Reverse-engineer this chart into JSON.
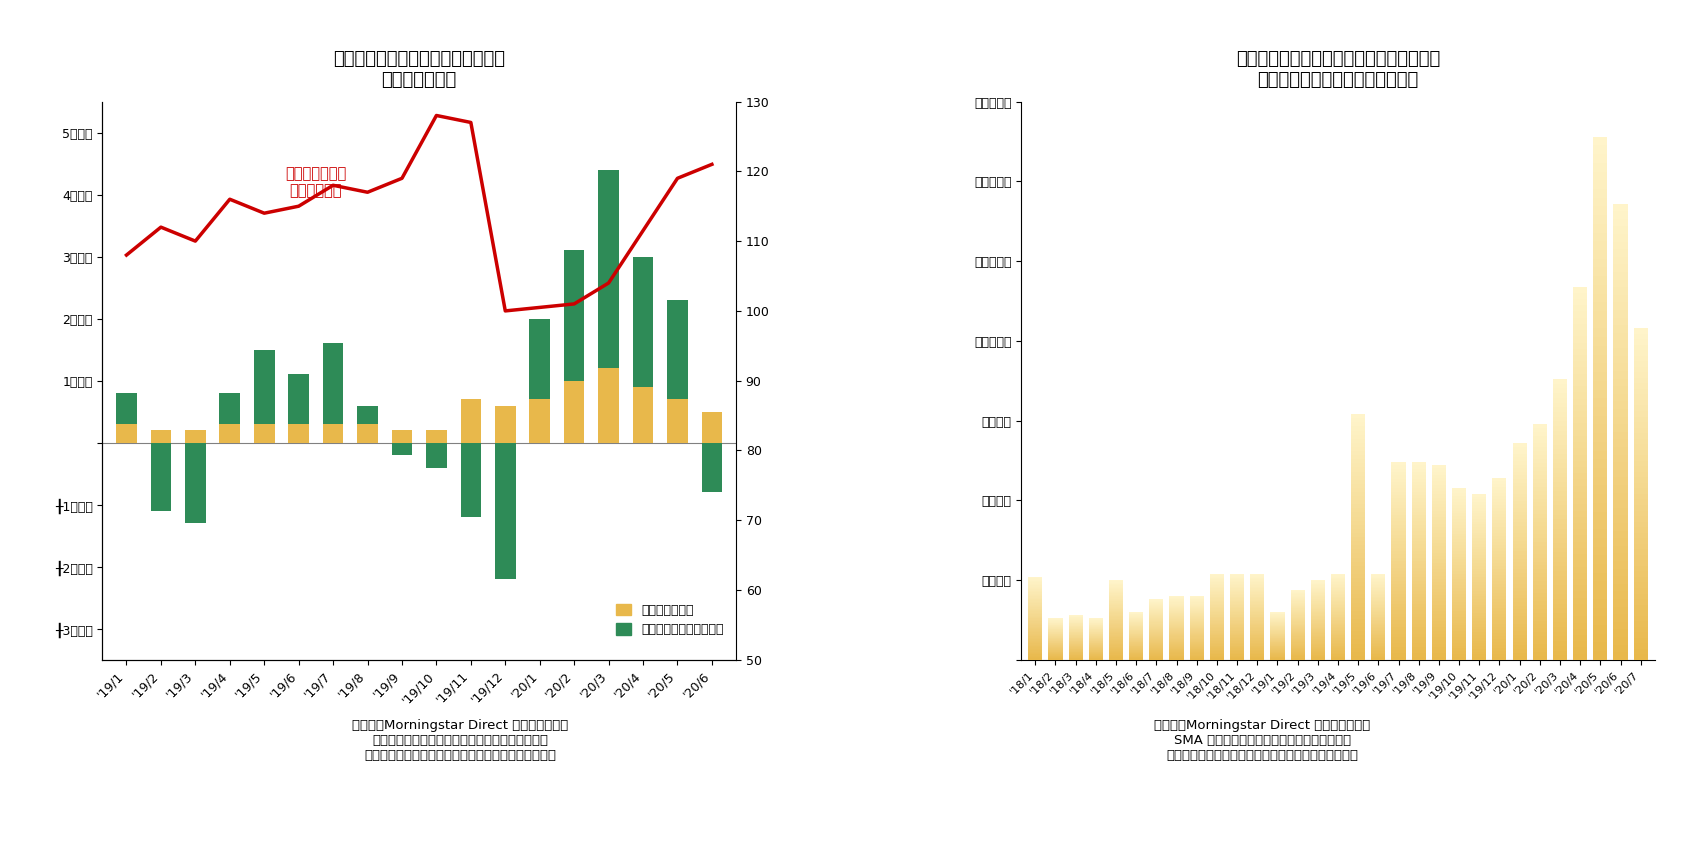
{
  "chart2": {
    "title": "図表２：タイプ別の外国株式投信の\n月次資金流出入",
    "xlabel_ticks": [
      "'19/1",
      "'19/2",
      "'19/3",
      "'19/4",
      "'19/5",
      "'19/6",
      "'19/7",
      "'19/8",
      "'19/9",
      "'19/10",
      "'19/11",
      "'19/12",
      "'20/1",
      "'20/2",
      "'20/3",
      "'20/4",
      "'20/5",
      "'20/6"
    ],
    "index_values": [
      300,
      200,
      200,
      300,
      300,
      300,
      300,
      300,
      200,
      200,
      700,
      600,
      700,
      1000,
      1200,
      900,
      700,
      500
    ],
    "other_values": [
      500,
      -1100,
      -1300,
      500,
      1200,
      800,
      1300,
      300,
      -200,
      -400,
      -1200,
      -2200,
      1300,
      2100,
      3200,
      2100,
      1600,
      -800
    ],
    "line_values": [
      108,
      112,
      110,
      116,
      114,
      115,
      118,
      117,
      119,
      128,
      127,
      100,
      101,
      104,
      119,
      121
    ],
    "line_x": [
      0,
      1,
      2,
      3,
      4,
      5,
      6,
      7,
      8,
      9,
      10,
      11,
      13,
      14,
      16,
      17
    ],
    "ylim": [
      -3500,
      5500
    ],
    "ylim_right": [
      50,
      130
    ],
    "yticks_left": [
      -3000,
      -2000,
      -1000,
      0,
      1000,
      2000,
      3000,
      4000,
      5000
    ],
    "ytick_labels_left": [
      "╂3千億円",
      "╂2千億円",
      "╂1千億円",
      "",
      "1千億円",
      "2千億円",
      "3千億円",
      "4千億円",
      "5千億円"
    ],
    "yticks_right": [
      50,
      60,
      70,
      80,
      90,
      100,
      110,
      120,
      130
    ],
    "color_index": "#E8B84B",
    "color_other": "#2E8B57",
    "color_line": "#CC0000",
    "annotation_text": "外国株式指数の\n推移（右軸）",
    "legend_index": "インデックス型",
    "legend_other": "その他（アクティブ型）",
    "caption": "（資料）Morningstar Direct より筆者作成。\n外国株式指数は代表的な配当込み円建ての指数を\n２０１９年初を１００となるように指数化している。",
    "bar_width": 0.6
  },
  "chart3": {
    "title": "図表３：インデックス型の外国株式投信の\n月初第３営業日の推計資金流出入",
    "xlabel_ticks": [
      "'18/1",
      "'18/2",
      "'18/3",
      "'18/4",
      "'18/5",
      "'18/6",
      "'18/7",
      "'18/8",
      "'18/9",
      "'18/10",
      "'18/11",
      "'18/12",
      "'19/1",
      "'19/2",
      "'19/3",
      "'19/4",
      "'19/5",
      "'19/6",
      "'19/7",
      "'19/8",
      "'19/9",
      "'19/10",
      "'19/11",
      "'19/12",
      "'20/1",
      "'20/2",
      "'20/3",
      "'20/4",
      "'20/5",
      "'20/6",
      "'20/7"
    ],
    "values": [
      26,
      13,
      14,
      13,
      25,
      15,
      19,
      20,
      20,
      27,
      27,
      27,
      15,
      22,
      25,
      27,
      77,
      27,
      62,
      62,
      61,
      54,
      52,
      57,
      68,
      74,
      88,
      117,
      164,
      143,
      104
    ],
    "ylim": [
      0,
      175
    ],
    "yticks": [
      0,
      25,
      50,
      75,
      100,
      125,
      150,
      175
    ],
    "ytick_labels": [
      "",
      "２５億円",
      "５０億円",
      "７５億円",
      "１００億円",
      "１２５億円",
      "１５０億円",
      "１７５億円"
    ],
    "caption": "（資料）Morningstar Direct より筆者作成。\nSMA 専用投信は除外。９月は米国の休場日の\n影響により２０１８年、２０１９年とも第４営業日。"
  },
  "bg_color": "#FFFFFF"
}
